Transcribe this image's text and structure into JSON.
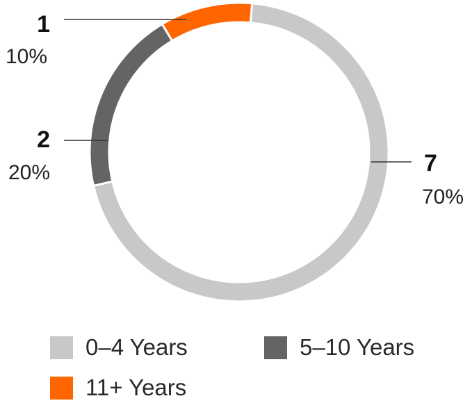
{
  "chart_data": {
    "type": "pie",
    "categories": [
      "0–4 Years",
      "5–10 Years",
      "11+ Years"
    ],
    "values": [
      7,
      2,
      1
    ],
    "percent_labels": [
      "70%",
      "20%",
      "10%"
    ],
    "colors": [
      "#c8c8c8",
      "#636466",
      "#ff6600"
    ],
    "donut": true,
    "title": "",
    "legend_position": "bottom"
  },
  "legend": {
    "items": [
      {
        "label": "0–4 Years",
        "color": "#c8c8c8"
      },
      {
        "label": "5–10 Years",
        "color": "#636466"
      },
      {
        "label": "11+ Years",
        "color": "#ff6600"
      }
    ]
  }
}
